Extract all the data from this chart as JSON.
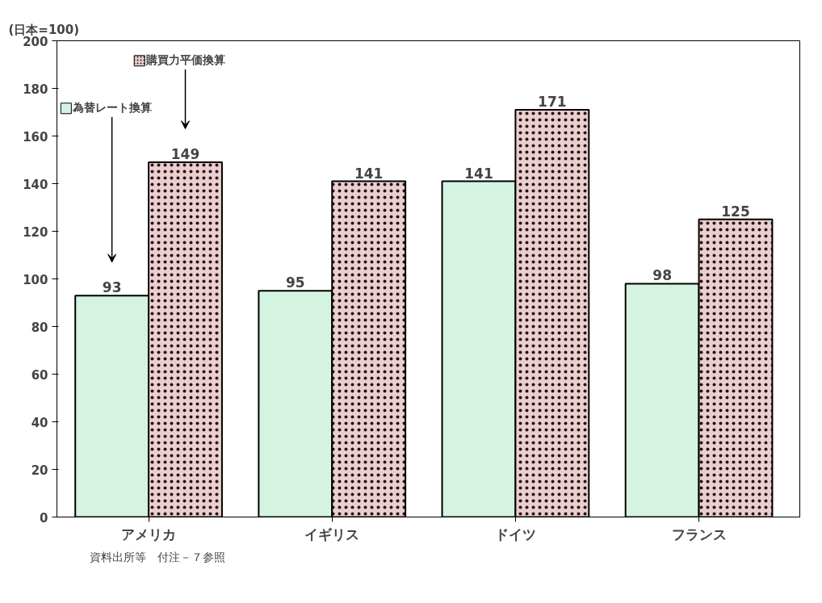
{
  "chart_data": {
    "type": "bar",
    "ylabel": "(日本=100)",
    "categories": [
      "アメリカ",
      "イギリス",
      "ドイツ",
      "フランス"
    ],
    "series": [
      {
        "name": "為替レート換算",
        "color": "#d4f3e0",
        "values": [
          93,
          95,
          141,
          98
        ]
      },
      {
        "name": "購買力平価換算",
        "color": "#e9cfcf",
        "values": [
          149,
          141,
          171,
          125
        ]
      }
    ],
    "ylim": [
      0,
      200
    ],
    "yticks": [
      0,
      20,
      40,
      60,
      80,
      100,
      120,
      140,
      160,
      180,
      200
    ],
    "data_labels": true,
    "grid": false,
    "legend": "top left",
    "annotations": [
      "資料出所等　付注－７参照"
    ]
  }
}
